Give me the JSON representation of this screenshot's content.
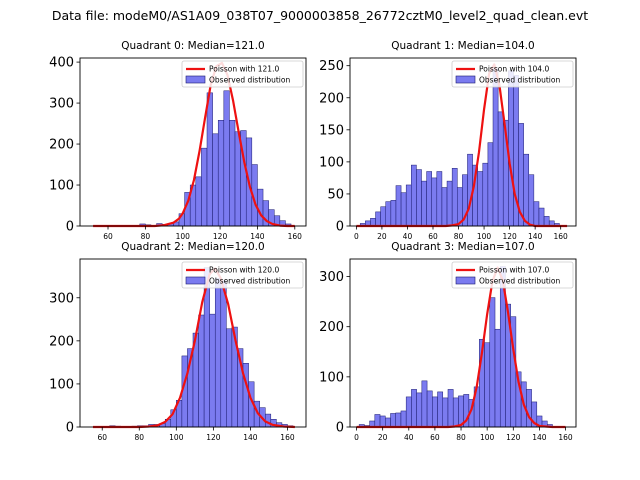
{
  "suptitle": "Data file: modeM0/AS1A09_038T07_9000003858_26772cztM0_level2_quad_clean.evt",
  "colors": {
    "bar_fill": "#7b7bf0",
    "bar_edge": "#1a1a6e",
    "poisson": "#ee1111",
    "axis": "#000000"
  },
  "chart_data": [
    {
      "type": "bar",
      "title": "Quadrant 0: Median=121.0",
      "median": 121.0,
      "legend": {
        "line_label": "Poisson with 121.0",
        "bar_label": "Observed distribution",
        "loc": "upper-right"
      },
      "xlim": [
        45,
        166
      ],
      "ylim": [
        0,
        410
      ],
      "xticks": [
        60,
        80,
        100,
        120,
        140,
        160
      ],
      "yticks": [
        0,
        100,
        200,
        300,
        400
      ],
      "bins": [
        [
          77,
          80,
          5
        ],
        [
          80,
          83,
          3
        ],
        [
          86,
          89,
          6
        ],
        [
          89,
          92,
          4
        ],
        [
          92,
          95,
          6
        ],
        [
          95,
          98,
          10
        ],
        [
          98,
          101,
          30
        ],
        [
          101,
          104,
          82
        ],
        [
          104,
          107,
          100
        ],
        [
          107,
          110,
          120
        ],
        [
          110,
          113,
          190
        ],
        [
          113,
          116,
          325
        ],
        [
          116,
          119,
          225
        ],
        [
          119,
          122,
          258
        ],
        [
          122,
          125,
          330
        ],
        [
          125,
          128,
          258
        ],
        [
          128,
          131,
          230
        ],
        [
          131,
          134,
          233
        ],
        [
          134,
          137,
          215
        ],
        [
          137,
          140,
          150
        ],
        [
          140,
          143,
          90
        ],
        [
          143,
          146,
          62
        ],
        [
          146,
          149,
          40
        ],
        [
          149,
          152,
          25
        ],
        [
          152,
          155,
          13
        ],
        [
          155,
          158,
          5
        ]
      ],
      "poisson_x": [
        52,
        60,
        70,
        80,
        85,
        90,
        95,
        98,
        100,
        103,
        106,
        109,
        112,
        115,
        118,
        121,
        124,
        127,
        130,
        133,
        136,
        139,
        142,
        145,
        148,
        152,
        156,
        160
      ],
      "poisson_y": [
        0,
        0,
        0,
        0,
        0,
        2,
        8,
        18,
        31,
        62,
        112,
        183,
        265,
        345,
        390,
        398,
        368,
        305,
        228,
        155,
        95,
        52,
        26,
        12,
        5,
        1,
        0,
        0
      ]
    },
    {
      "type": "bar",
      "title": "Quadrant 1: Median=104.0",
      "median": 104.0,
      "legend": {
        "line_label": "Poisson with 104.0",
        "bar_label": "Observed distribution",
        "loc": "upper-right"
      },
      "xlim": [
        -5,
        172
      ],
      "ylim": [
        0,
        262
      ],
      "xticks": [
        0,
        20,
        40,
        60,
        80,
        100,
        120,
        140,
        160
      ],
      "yticks": [
        0,
        50,
        100,
        150,
        200,
        250
      ],
      "bins": [
        [
          3,
          7,
          4
        ],
        [
          7,
          11,
          8
        ],
        [
          11,
          15,
          12
        ],
        [
          15,
          19,
          22
        ],
        [
          19,
          23,
          30
        ],
        [
          23,
          27,
          38
        ],
        [
          27,
          31,
          40
        ],
        [
          31,
          35,
          63
        ],
        [
          35,
          39,
          52
        ],
        [
          39,
          43,
          64
        ],
        [
          43,
          47,
          95
        ],
        [
          47,
          51,
          88
        ],
        [
          51,
          55,
          70
        ],
        [
          55,
          59,
          85
        ],
        [
          59,
          63,
          75
        ],
        [
          63,
          67,
          85
        ],
        [
          67,
          71,
          60
        ],
        [
          71,
          75,
          70
        ],
        [
          75,
          79,
          90
        ],
        [
          79,
          83,
          60
        ],
        [
          83,
          87,
          80
        ],
        [
          87,
          91,
          112
        ],
        [
          91,
          95,
          95
        ],
        [
          95,
          99,
          85
        ],
        [
          99,
          103,
          98
        ],
        [
          103,
          107,
          130
        ],
        [
          107,
          111,
          245
        ],
        [
          111,
          115,
          178
        ],
        [
          115,
          119,
          165
        ],
        [
          119,
          123,
          242
        ],
        [
          123,
          127,
          235
        ],
        [
          127,
          131,
          160
        ],
        [
          131,
          135,
          112
        ],
        [
          135,
          139,
          80
        ],
        [
          139,
          143,
          38
        ],
        [
          143,
          147,
          28
        ],
        [
          147,
          151,
          15
        ],
        [
          151,
          155,
          8
        ],
        [
          155,
          159,
          4
        ]
      ],
      "poisson_x": [
        0,
        40,
        60,
        70,
        75,
        80,
        84,
        88,
        92,
        96,
        100,
        104,
        108,
        112,
        116,
        120,
        124,
        128,
        132,
        136,
        140,
        150,
        165
      ],
      "poisson_y": [
        0,
        0,
        0,
        0,
        1,
        3,
        10,
        27,
        62,
        115,
        182,
        238,
        252,
        220,
        160,
        98,
        50,
        22,
        8,
        2,
        0,
        0,
        0
      ]
    },
    {
      "type": "bar",
      "title": "Quadrant 2: Median=120.0",
      "median": 120.0,
      "legend": {
        "line_label": "Poisson with 120.0",
        "bar_label": "Observed distribution",
        "loc": "upper-right"
      },
      "xlim": [
        48,
        170
      ],
      "ylim": [
        0,
        390
      ],
      "xticks": [
        60,
        80,
        100,
        120,
        140,
        160
      ],
      "yticks": [
        0,
        100,
        200,
        300
      ],
      "bins": [
        [
          64,
          67,
          3
        ],
        [
          67,
          70,
          2
        ],
        [
          76,
          79,
          2
        ],
        [
          79,
          82,
          3
        ],
        [
          82,
          85,
          3
        ],
        [
          85,
          88,
          6
        ],
        [
          88,
          91,
          6
        ],
        [
          91,
          94,
          8
        ],
        [
          94,
          97,
          18
        ],
        [
          97,
          100,
          40
        ],
        [
          100,
          103,
          62
        ],
        [
          103,
          106,
          165
        ],
        [
          106,
          109,
          182
        ],
        [
          109,
          112,
          218
        ],
        [
          112,
          115,
          260
        ],
        [
          115,
          118,
          370
        ],
        [
          118,
          121,
          262
        ],
        [
          121,
          124,
          345
        ],
        [
          124,
          127,
          340
        ],
        [
          127,
          130,
          228
        ],
        [
          130,
          133,
          232
        ],
        [
          133,
          136,
          182
        ],
        [
          136,
          139,
          148
        ],
        [
          139,
          142,
          105
        ],
        [
          142,
          145,
          60
        ],
        [
          145,
          148,
          45
        ],
        [
          148,
          151,
          30
        ],
        [
          151,
          154,
          18
        ],
        [
          154,
          157,
          10
        ],
        [
          157,
          160,
          6
        ],
        [
          160,
          163,
          3
        ]
      ],
      "poisson_x": [
        55,
        60,
        70,
        80,
        85,
        90,
        94,
        98,
        102,
        106,
        110,
        114,
        118,
        121,
        124,
        128,
        132,
        136,
        140,
        144,
        148,
        152,
        158,
        164
      ],
      "poisson_y": [
        0,
        0,
        0,
        0,
        1,
        4,
        12,
        30,
        68,
        125,
        200,
        290,
        355,
        368,
        345,
        285,
        200,
        125,
        68,
        32,
        13,
        5,
        1,
        0
      ]
    },
    {
      "type": "bar",
      "title": "Quadrant 3: Median=107.0",
      "median": 107.0,
      "legend": {
        "line_label": "Poisson with 107.0",
        "bar_label": "Observed distribution",
        "loc": "upper-right"
      },
      "xlim": [
        -5,
        168
      ],
      "ylim": [
        0,
        335
      ],
      "xticks": [
        0,
        20,
        40,
        60,
        80,
        100,
        120,
        140,
        160
      ],
      "yticks": [
        0,
        100,
        200,
        300
      ],
      "bins": [
        [
          2,
          6,
          5
        ],
        [
          6,
          10,
          3
        ],
        [
          10,
          14,
          12
        ],
        [
          14,
          18,
          25
        ],
        [
          18,
          22,
          22
        ],
        [
          22,
          26,
          18
        ],
        [
          26,
          30,
          27
        ],
        [
          30,
          34,
          28
        ],
        [
          34,
          38,
          32
        ],
        [
          38,
          42,
          60
        ],
        [
          42,
          46,
          75
        ],
        [
          46,
          50,
          68
        ],
        [
          50,
          54,
          92
        ],
        [
          54,
          58,
          72
        ],
        [
          58,
          62,
          60
        ],
        [
          62,
          66,
          70
        ],
        [
          66,
          70,
          58
        ],
        [
          70,
          74,
          75
        ],
        [
          74,
          78,
          58
        ],
        [
          78,
          82,
          62
        ],
        [
          82,
          86,
          65
        ],
        [
          86,
          90,
          55
        ],
        [
          90,
          94,
          80
        ],
        [
          94,
          98,
          175
        ],
        [
          98,
          102,
          168
        ],
        [
          102,
          106,
          258
        ],
        [
          106,
          110,
          195
        ],
        [
          110,
          114,
          320
        ],
        [
          114,
          118,
          245
        ],
        [
          118,
          122,
          220
        ],
        [
          122,
          126,
          110
        ],
        [
          126,
          130,
          90
        ],
        [
          130,
          134,
          75
        ],
        [
          134,
          138,
          50
        ],
        [
          138,
          142,
          22
        ],
        [
          142,
          146,
          12
        ],
        [
          146,
          150,
          5
        ]
      ],
      "poisson_x": [
        0,
        40,
        60,
        70,
        75,
        80,
        84,
        88,
        92,
        96,
        100,
        104,
        108,
        112,
        116,
        120,
        124,
        128,
        132,
        136,
        140,
        150,
        160
      ],
      "poisson_y": [
        0,
        0,
        0,
        0,
        1,
        4,
        13,
        35,
        80,
        148,
        225,
        290,
        318,
        292,
        228,
        155,
        90,
        45,
        20,
        8,
        2,
        0,
        0
      ]
    }
  ]
}
